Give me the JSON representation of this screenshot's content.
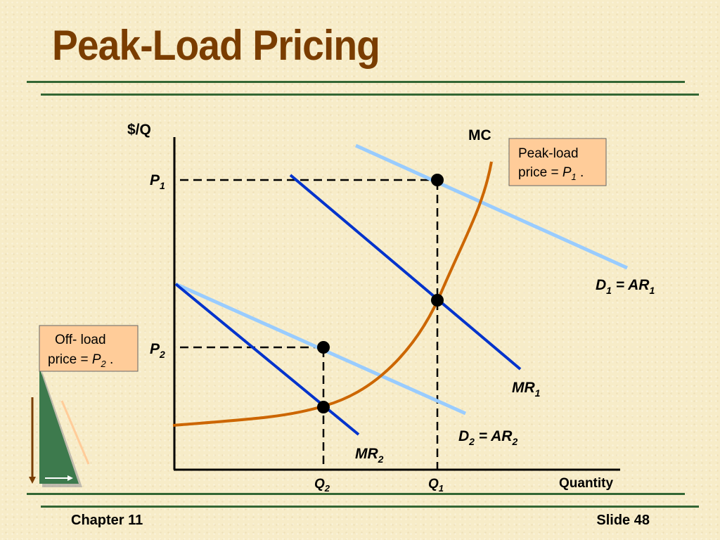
{
  "slide": {
    "title": "Peak-Load Pricing",
    "chapter": "Chapter 11",
    "slide_number": "Slide 48"
  },
  "axes": {
    "y_label": "$/Q",
    "x_label": "Quantity"
  },
  "labels": {
    "p1": "P",
    "p1_sub": "1",
    "p2": "P",
    "p2_sub": "2",
    "q1": "Q",
    "q1_sub": "1",
    "q2": "Q",
    "q2_sub": "2",
    "mc": "MC",
    "d1_d": "D",
    "d1_d_sub": "1",
    "d1_eq": " = AR",
    "d1_ar_sub": "1",
    "d2_d": "D",
    "d2_d_sub": "2",
    "d2_eq": " = AR",
    "d2_ar_sub": "2",
    "mr1": "MR",
    "mr1_sub": "1",
    "mr2": "MR",
    "mr2_sub": "2"
  },
  "callouts": {
    "peak": {
      "line1": "Peak-load",
      "line2_prefix": "price = ",
      "var": "P",
      "sub": "1",
      "suffix": " ."
    },
    "offpeak": {
      "line1": "Off- load",
      "line2_prefix": "price = ",
      "var": "P",
      "sub": "2",
      "suffix": " ."
    }
  },
  "colors": {
    "demand": "#99ccff",
    "marginal_revenue": "#0033cc",
    "marginal_cost": "#cc6600",
    "callout_fill": "#ffcc99",
    "title": "#7a3d00",
    "rule": "#336633"
  },
  "icons": {
    "decoration": "green-triangle-icon"
  }
}
